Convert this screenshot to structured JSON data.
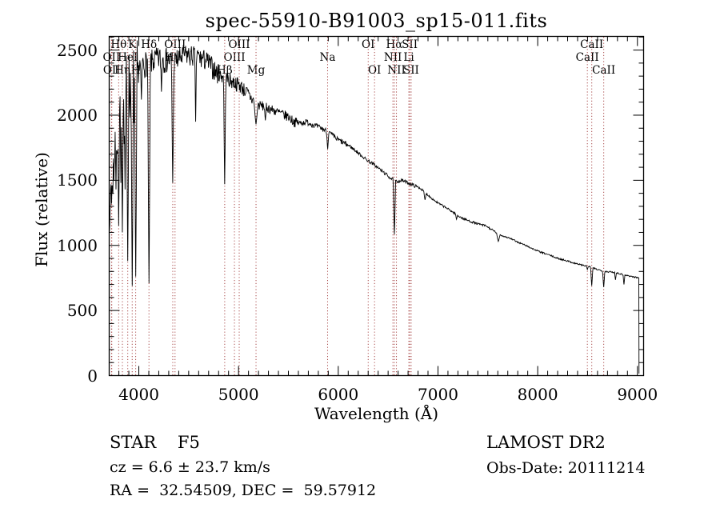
{
  "chart_data": {
    "type": "line",
    "title": "spec-55910-B91003_sp15-011.fits",
    "xlabel": "Wavelength (Å)",
    "ylabel": "Flux (relative)",
    "xlim": [
      3703,
      9062
    ],
    "ylim": [
      0,
      2605
    ],
    "x_ticks": [
      4000,
      5000,
      6000,
      7000,
      8000,
      9000
    ],
    "y_ticks": [
      0,
      500,
      1000,
      1500,
      2000,
      2500
    ],
    "x_minor_step": 100,
    "y_minor_step": 100,
    "grid": false,
    "frame_color": "#000000",
    "trace_color": "#000000",
    "marker_line_color": "#a84848",
    "line_marks": [
      {
        "label": "Hθ",
        "wavelength": 3798.0,
        "row": 1
      },
      {
        "label": "K",
        "wavelength": 3933.7,
        "row": 1
      },
      {
        "label": "Hδ",
        "wavelength": 4101.7,
        "row": 1
      },
      {
        "label": "OIII",
        "wavelength": 4363.2,
        "row": 1
      },
      {
        "label": "OIII",
        "wavelength": 5006.8,
        "row": 1
      },
      {
        "label": "OI",
        "wavelength": 6300.3,
        "row": 1
      },
      {
        "label": "Hα",
        "wavelength": 6562.8,
        "row": 1
      },
      {
        "label": "SII",
        "wavelength": 6716.4,
        "row": 1
      },
      {
        "label": "CaII",
        "wavelength": 8542.1,
        "row": 1
      },
      {
        "label": "OII",
        "wavelength": 3726.0,
        "row": 2
      },
      {
        "label": "HeI",
        "wavelength": 3889.0,
        "row": 2
      },
      {
        "label": "Hγ",
        "wavelength": 4340.5,
        "row": 2
      },
      {
        "label": "OIII",
        "wavelength": 4958.9,
        "row": 2
      },
      {
        "label": "Na",
        "wavelength": 5893.0,
        "row": 2
      },
      {
        "label": "NII",
        "wavelength": 6548.0,
        "row": 2
      },
      {
        "label": "Li",
        "wavelength": 6707.8,
        "row": 2
      },
      {
        "label": "CaII",
        "wavelength": 8498.0,
        "row": 2
      },
      {
        "label": "OII",
        "wavelength": 3728.8,
        "row": 3
      },
      {
        "label": "Hη",
        "wavelength": 3835.4,
        "row": 3
      },
      {
        "label": "H",
        "wavelength": 3968.5,
        "row": 3
      },
      {
        "label": "Hβ",
        "wavelength": 4861.3,
        "row": 3
      },
      {
        "label": "Mg",
        "wavelength": 5175.4,
        "row": 3
      },
      {
        "label": "OI",
        "wavelength": 6363.8,
        "row": 3
      },
      {
        "label": "NII",
        "wavelength": 6583.5,
        "row": 3
      },
      {
        "label": "SII",
        "wavelength": 6730.8,
        "row": 3
      },
      {
        "label": "CaII",
        "wavelength": 8662.1,
        "row": 3
      }
    ],
    "spectrum": {
      "sample_step": 4.5,
      "noise_seed": 7,
      "clamp": [
        8,
        2590
      ],
      "end_drop": {
        "wavelength": 9016,
        "bottom_flux": 15
      },
      "envelope": [
        [
          3704,
          1520
        ],
        [
          3715,
          1550
        ],
        [
          3726,
          1600
        ],
        [
          3738,
          1680
        ],
        [
          3750,
          1760
        ],
        [
          3762,
          1850
        ],
        [
          3775,
          1950
        ],
        [
          3790,
          2040
        ],
        [
          3810,
          2110
        ],
        [
          3830,
          2160
        ],
        [
          3850,
          2190
        ],
        [
          3870,
          2210
        ],
        [
          3890,
          2230
        ],
        [
          3910,
          2250
        ],
        [
          3940,
          2270
        ],
        [
          3970,
          2270
        ],
        [
          3985,
          2330
        ],
        [
          4000,
          2380
        ],
        [
          4060,
          2410
        ],
        [
          4120,
          2420
        ],
        [
          4180,
          2440
        ],
        [
          4240,
          2450
        ],
        [
          4300,
          2430
        ],
        [
          4360,
          2420
        ],
        [
          4420,
          2450
        ],
        [
          4470,
          2470
        ],
        [
          4520,
          2460
        ],
        [
          4570,
          2470
        ],
        [
          4620,
          2440
        ],
        [
          4670,
          2430
        ],
        [
          4720,
          2390
        ],
        [
          4770,
          2340
        ],
        [
          4820,
          2310
        ],
        [
          4870,
          2290
        ],
        [
          4920,
          2270
        ],
        [
          4970,
          2250
        ],
        [
          5020,
          2230
        ],
        [
          5080,
          2180
        ],
        [
          5140,
          2120
        ],
        [
          5200,
          2080
        ],
        [
          5260,
          2070
        ],
        [
          5320,
          2050
        ],
        [
          5380,
          2030
        ],
        [
          5440,
          2010
        ],
        [
          5500,
          1990
        ],
        [
          5560,
          1950
        ],
        [
          5620,
          1940
        ],
        [
          5680,
          1950
        ],
        [
          5740,
          1930
        ],
        [
          5800,
          1910
        ],
        [
          5860,
          1890
        ],
        [
          5920,
          1860
        ],
        [
          5980,
          1820
        ],
        [
          6050,
          1790
        ],
        [
          6120,
          1760
        ],
        [
          6200,
          1710
        ],
        [
          6280,
          1660
        ],
        [
          6360,
          1620
        ],
        [
          6440,
          1570
        ],
        [
          6520,
          1520
        ],
        [
          6580,
          1490
        ],
        [
          6640,
          1500
        ],
        [
          6700,
          1480
        ],
        [
          6760,
          1460
        ],
        [
          6820,
          1440
        ],
        [
          6880,
          1400
        ],
        [
          6940,
          1360
        ],
        [
          7000,
          1325
        ],
        [
          7080,
          1290
        ],
        [
          7160,
          1250
        ],
        [
          7240,
          1210
        ],
        [
          7320,
          1185
        ],
        [
          7400,
          1165
        ],
        [
          7480,
          1150
        ],
        [
          7560,
          1110
        ],
        [
          7640,
          1075
        ],
        [
          7720,
          1055
        ],
        [
          7800,
          1025
        ],
        [
          7880,
          1000
        ],
        [
          7960,
          970
        ],
        [
          8040,
          945
        ],
        [
          8120,
          925
        ],
        [
          8200,
          900
        ],
        [
          8280,
          885
        ],
        [
          8360,
          865
        ],
        [
          8440,
          850
        ],
        [
          8520,
          835
        ],
        [
          8600,
          815
        ],
        [
          8680,
          800
        ],
        [
          8740,
          795
        ],
        [
          8800,
          788
        ],
        [
          8860,
          775
        ],
        [
          8920,
          765
        ],
        [
          8980,
          755
        ],
        [
          9016,
          750
        ]
      ],
      "absorption_lines": [
        [
          3712,
          1270,
          9
        ],
        [
          3727,
          1320,
          8
        ],
        [
          3737,
          1420,
          7
        ],
        [
          3750,
          1500,
          7
        ],
        [
          3771,
          1430,
          8
        ],
        [
          3798,
          1150,
          10
        ],
        [
          3820,
          1480,
          8
        ],
        [
          3835,
          1100,
          10
        ],
        [
          3862,
          1430,
          8
        ],
        [
          3889,
          880,
          11
        ],
        [
          3934,
          690,
          12
        ],
        [
          3969,
          760,
          12
        ],
        [
          4026,
          2120,
          8
        ],
        [
          4102,
          710,
          13
        ],
        [
          4227,
          2180,
          8
        ],
        [
          4340,
          1480,
          12
        ],
        [
          4570,
          1950,
          8
        ],
        [
          4861,
          1470,
          11
        ],
        [
          5175,
          1930,
          20
        ],
        [
          5269,
          1960,
          10
        ],
        [
          5894,
          1740,
          11
        ],
        [
          6563,
          1085,
          12
        ],
        [
          6870,
          1350,
          12
        ],
        [
          7186,
          1200,
          10
        ],
        [
          7605,
          1030,
          18
        ],
        [
          8498,
          815,
          9
        ],
        [
          8542,
          690,
          11
        ],
        [
          8662,
          680,
          11
        ],
        [
          8780,
          735,
          9
        ],
        [
          8865,
          700,
          9
        ]
      ],
      "noise_segments": [
        {
          "from": 3704,
          "to": 3990,
          "amp": 270,
          "down": 1.6,
          "up": 1.0
        },
        {
          "from": 3990,
          "to": 4450,
          "amp": 90,
          "down": 1.35,
          "up": 0.9
        },
        {
          "from": 4450,
          "to": 4800,
          "amp": 80,
          "down": 1.2,
          "up": 0.9
        },
        {
          "from": 4800,
          "to": 5150,
          "amp": 55,
          "down": 1.2,
          "up": 0.9
        },
        {
          "from": 5150,
          "to": 5600,
          "amp": 38,
          "down": 1.1,
          "up": 0.9
        },
        {
          "from": 5600,
          "to": 6100,
          "amp": 22,
          "down": 1.1,
          "up": 0.9
        },
        {
          "from": 6100,
          "to": 6800,
          "amp": 13,
          "down": 1.0,
          "up": 1.0
        },
        {
          "from": 6800,
          "to": 7600,
          "amp": 8,
          "down": 1.0,
          "up": 1.0
        },
        {
          "from": 7600,
          "to": 9020,
          "amp": 6,
          "down": 1.0,
          "up": 1.0
        }
      ]
    }
  },
  "footer": {
    "star_class": "STAR    F5",
    "cz": "cz = 6.6 ± 23.7 km/s",
    "radec": "RA =  32.54509, DEC =  59.57912",
    "survey": "LAMOST DR2",
    "obs_date": "Obs-Date: 20111214"
  }
}
